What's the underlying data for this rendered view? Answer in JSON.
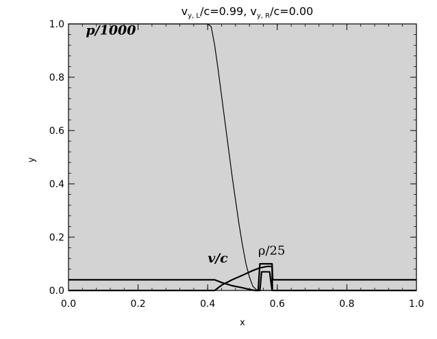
{
  "chart_data": {
    "type": "line",
    "title_parts": [
      "v",
      "y, L",
      "/c=0.99,  v",
      "y, R",
      "/c=0.00"
    ],
    "xlabel": "x",
    "ylabel": "y",
    "xlim": [
      0.0,
      1.0
    ],
    "ylim": [
      0.0,
      1.0
    ],
    "xticks": [
      "0.0",
      "0.2",
      "0.4",
      "0.6",
      "0.8",
      "1.0"
    ],
    "yticks": [
      "0.0",
      "0.2",
      "0.4",
      "0.6",
      "0.8",
      "1.0"
    ],
    "grid": false,
    "background": "#d3d3d3",
    "line_color": "#000000",
    "annotations": [
      {
        "text": "p/1000",
        "x": 0.05,
        "y": 0.96
      },
      {
        "text": "v/c",
        "x": 0.4,
        "y": 0.105
      },
      {
        "text": "ρ/25",
        "x": 0.545,
        "y": 0.135
      }
    ],
    "series": [
      {
        "x": [
          0.0,
          0.4,
          0.41,
          0.42,
          0.43,
          0.44,
          0.45,
          0.46,
          0.47,
          0.48,
          0.49,
          0.5,
          0.51,
          0.52,
          0.53,
          0.54,
          0.55,
          1.0
        ],
        "y": [
          1.0,
          1.0,
          0.99,
          0.92,
          0.83,
          0.73,
          0.63,
          0.53,
          0.43,
          0.34,
          0.25,
          0.17,
          0.1,
          0.05,
          0.015,
          0.003,
          0.0,
          0.0
        ]
      },
      {
        "x": [
          0.0,
          0.42,
          0.44,
          0.47,
          0.5,
          0.53,
          0.55,
          0.57,
          0.575,
          0.585,
          0.586,
          1.0
        ],
        "y": [
          0.0,
          0.0,
          0.02,
          0.04,
          0.057,
          0.075,
          0.085,
          0.09,
          0.09,
          0.09,
          0.0,
          0.0
        ]
      },
      {
        "x": [
          0.0,
          0.42,
          0.44,
          0.47,
          0.5,
          0.52,
          0.535,
          0.545,
          0.55,
          0.585,
          0.587,
          1.0
        ],
        "y": [
          0.04,
          0.04,
          0.03,
          0.018,
          0.01,
          0.004,
          0.0,
          0.0,
          0.1,
          0.1,
          0.04,
          0.04
        ]
      },
      {
        "x": [
          0.54,
          0.55,
          0.555,
          0.56,
          0.57,
          0.578,
          0.585
        ],
        "y": [
          0.0,
          0.0,
          0.07,
          0.07,
          0.07,
          0.07,
          0.0
        ]
      }
    ]
  }
}
